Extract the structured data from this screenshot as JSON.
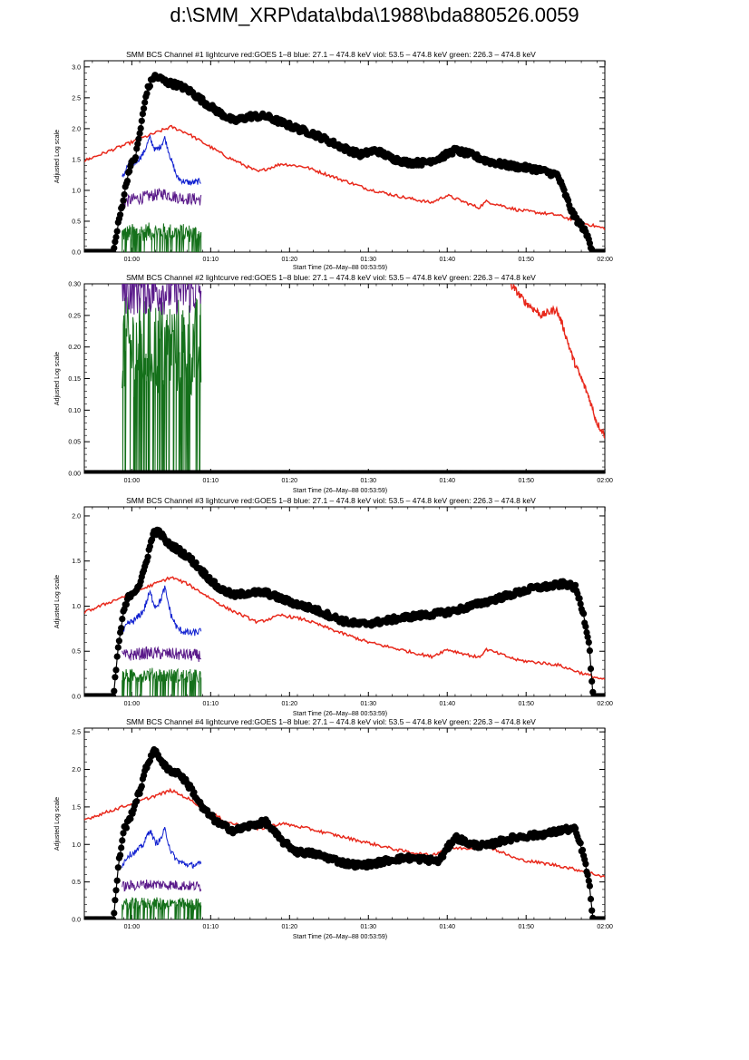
{
  "page": {
    "title": "d:\\SMM_XRP\\data\\bda\\1988\\bda880526.0059"
  },
  "colors": {
    "goes": "#e8291c",
    "blue": "#1020d0",
    "violet": "#5a1a8a",
    "green": "#14701a",
    "bcs": "#000000"
  },
  "chart_data": [
    {
      "type": "line",
      "title": "SMM BCS Channel #1 lightcurve  red:GOES 1–8  blue: 27.1 – 474.8 keV  viol: 53.5 – 474.8 keV  green: 226.3 – 474.8 keV",
      "xlabel": "Start Time (26–May–88 00:53:59)",
      "ylabel": "Adjusted Log scale",
      "x_unit": "minutes after 00:53:59",
      "xlim": [
        0,
        66
      ],
      "ylim": [
        0,
        3.1
      ],
      "x_ticks": [
        6.02,
        16.02,
        26.02,
        36.02,
        46.02,
        56.02,
        66.02
      ],
      "x_tick_labels": [
        "01:00",
        "01:10",
        "01:20",
        "01:30",
        "01:40",
        "01:50",
        "02:00"
      ],
      "y_ticks": [
        0,
        0.5,
        1,
        1.5,
        2,
        2.5,
        3
      ],
      "y_tick_labels": [
        "0.0",
        "0.5",
        "1.0",
        "1.5",
        "2.0",
        "2.5",
        "3.0"
      ],
      "hxrbs_end": 14.8,
      "series": [
        {
          "key": "goes",
          "style": "line",
          "x": [
            0,
            11,
            13,
            18,
            22,
            25,
            28,
            32,
            36,
            40,
            44,
            46,
            50,
            51,
            55,
            60,
            63,
            66
          ],
          "y": [
            1.48,
            2.03,
            1.93,
            1.55,
            1.3,
            1.43,
            1.38,
            1.2,
            1.02,
            0.9,
            0.8,
            0.92,
            0.72,
            0.82,
            0.68,
            0.6,
            0.48,
            0.38
          ]
        },
        {
          "key": "bcs",
          "style": "markers",
          "x": [
            0,
            3.7,
            4.3,
            5,
            5.7,
            6.5,
            7.2,
            7.9,
            8.8,
            9.5,
            10.5,
            12,
            13.5,
            15,
            17,
            19,
            21,
            23,
            25,
            27,
            29,
            31,
            33,
            35,
            37,
            39,
            41,
            43,
            45,
            47,
            49,
            51,
            53,
            55,
            57,
            58,
            60,
            62,
            63.2,
            64,
            64.5,
            65.3,
            66
          ],
          "y": [
            0,
            0,
            0.45,
            0.9,
            1.35,
            1.55,
            2.05,
            2.6,
            2.85,
            2.82,
            2.75,
            2.7,
            2.6,
            2.45,
            2.27,
            2.12,
            2.2,
            2.2,
            2.1,
            2.0,
            1.92,
            1.8,
            1.68,
            1.58,
            1.65,
            1.52,
            1.45,
            1.45,
            1.52,
            1.65,
            1.58,
            1.48,
            1.42,
            1.38,
            1.35,
            1.32,
            1.25,
            0.6,
            0.4,
            0.2,
            0,
            0,
            0
          ]
        },
        {
          "key": "blue",
          "style": "noisy",
          "x": [
            4.8,
            5.5,
            6.5,
            7.5,
            8.3,
            9,
            9.6,
            10.2,
            11,
            11.8,
            12.5,
            13.5,
            14.8
          ],
          "y": [
            1.2,
            1.4,
            1.45,
            1.6,
            1.85,
            1.65,
            1.7,
            1.85,
            1.5,
            1.2,
            1.15,
            1.12,
            1.15
          ],
          "noise": 0.05
        },
        {
          "key": "violet",
          "style": "noisy",
          "x": [
            4.8,
            6,
            8,
            10,
            12,
            14.8
          ],
          "y": [
            0.8,
            0.85,
            0.9,
            0.95,
            0.88,
            0.85
          ],
          "noise": 0.1
        },
        {
          "key": "green",
          "style": "noisy",
          "x": [
            4.8,
            8,
            11,
            14.8
          ],
          "y": [
            0.3,
            0.33,
            0.32,
            0.3
          ],
          "noise": 0.15
        }
      ]
    },
    {
      "type": "line",
      "title": "SMM BCS Channel #2 lightcurve  red:GOES 1–8  blue: 27.1 – 474.8 keV  viol: 53.5 – 474.8 keV  green: 226.3 – 474.8 keV",
      "xlabel": "Start Time (26–May–88 00:53:59)",
      "ylabel": "Adjusted Log scale",
      "x_unit": "minutes after 00:53:59",
      "xlim": [
        0,
        66
      ],
      "ylim": [
        0,
        0.3
      ],
      "x_ticks": [
        6.02,
        16.02,
        26.02,
        36.02,
        46.02,
        56.02,
        66.02
      ],
      "x_tick_labels": [
        "01:00",
        "01:10",
        "01:20",
        "01:30",
        "01:40",
        "01:50",
        "02:00"
      ],
      "y_ticks": [
        0,
        0.05,
        0.1,
        0.15,
        0.2,
        0.25,
        0.3
      ],
      "y_tick_labels": [
        "0.00",
        "0.05",
        "0.10",
        "0.15",
        "0.20",
        "0.25",
        "0.30"
      ],
      "hxrbs_end": 14.8,
      "series": [
        {
          "key": "goes",
          "style": "noisy",
          "x": [
            54,
            56,
            58,
            59.8,
            60.5,
            62,
            64,
            65,
            66
          ],
          "y": [
            0.3,
            0.27,
            0.25,
            0.26,
            0.24,
            0.18,
            0.12,
            0.08,
            0.06
          ],
          "noise": 0.006
        },
        {
          "key": "bcs",
          "style": "markers",
          "x": [
            0,
            10,
            20,
            30,
            40,
            50,
            60,
            66
          ],
          "y": [
            0,
            0,
            0,
            0,
            0,
            0,
            0,
            0
          ]
        },
        {
          "key": "violet",
          "style": "noisy",
          "x": [
            4.8,
            14.8
          ],
          "y": [
            0.29,
            0.29
          ],
          "noise": 0.04
        },
        {
          "key": "green",
          "style": "noisy",
          "x": [
            4.8,
            14.8
          ],
          "y": [
            0.2,
            0.2
          ],
          "noise": 0.08
        }
      ]
    },
    {
      "type": "line",
      "title": "SMM BCS Channel #3 lightcurve  red:GOES 1–8  blue: 27.1 – 474.8 keV  viol: 53.5 – 474.8 keV  green: 226.3 – 474.8 keV",
      "xlabel": "Start Time (26–May–88 00:53:59)",
      "ylabel": "Adjusted Log scale",
      "x_unit": "minutes after 00:53:59",
      "xlim": [
        0,
        66
      ],
      "ylim": [
        0,
        2.1
      ],
      "x_ticks": [
        6.02,
        16.02,
        26.02,
        36.02,
        46.02,
        56.02,
        66.02
      ],
      "x_tick_labels": [
        "01:00",
        "01:10",
        "01:20",
        "01:30",
        "01:40",
        "01:50",
        "02:00"
      ],
      "y_ticks": [
        0,
        0.5,
        1,
        1.5,
        2
      ],
      "y_tick_labels": [
        "0.0",
        "0.5",
        "1.0",
        "1.5",
        "2.0"
      ],
      "hxrbs_end": 14.8,
      "series": [
        {
          "key": "goes",
          "style": "line",
          "x": [
            0,
            11,
            13,
            18,
            22,
            25,
            28,
            32,
            36,
            40,
            44,
            46,
            50,
            51,
            55,
            60,
            63,
            66
          ],
          "y": [
            0.93,
            1.32,
            1.25,
            0.98,
            0.82,
            0.9,
            0.85,
            0.72,
            0.6,
            0.52,
            0.44,
            0.52,
            0.43,
            0.52,
            0.4,
            0.35,
            0.26,
            0.18
          ]
        },
        {
          "key": "bcs",
          "style": "markers",
          "x": [
            0,
            3.7,
            4.3,
            5,
            5.7,
            6.4,
            7.2,
            8,
            8.8,
            9.5,
            10.5,
            12,
            13.5,
            15,
            17,
            19,
            21,
            23,
            25,
            27,
            29,
            31,
            33,
            35,
            37,
            39,
            41,
            43,
            45,
            47,
            49,
            51,
            53,
            55,
            57,
            59,
            61,
            62.3,
            63.2,
            64,
            64.5,
            65.3,
            66
          ],
          "y": [
            0,
            0,
            0.55,
            0.95,
            1.12,
            1.17,
            1.27,
            1.55,
            1.82,
            1.82,
            1.7,
            1.62,
            1.52,
            1.38,
            1.2,
            1.12,
            1.15,
            1.15,
            1.08,
            1.02,
            0.97,
            0.9,
            0.83,
            0.8,
            0.82,
            0.85,
            0.88,
            0.9,
            0.92,
            0.95,
            1.0,
            1.05,
            1.1,
            1.15,
            1.2,
            1.22,
            1.25,
            1.2,
            0.95,
            0.6,
            0,
            0,
            0
          ]
        },
        {
          "key": "blue",
          "style": "noisy",
          "x": [
            4.8,
            5.5,
            6.5,
            7.5,
            8.3,
            9,
            9.6,
            10.2,
            11,
            11.8,
            12.5,
            13.5,
            14.8
          ],
          "y": [
            0.7,
            0.8,
            0.85,
            0.95,
            1.15,
            1.0,
            1.05,
            1.2,
            0.9,
            0.75,
            0.72,
            0.7,
            0.72
          ],
          "noise": 0.04
        },
        {
          "key": "violet",
          "style": "noisy",
          "x": [
            4.8,
            8,
            11,
            14.8
          ],
          "y": [
            0.45,
            0.48,
            0.47,
            0.45
          ],
          "noise": 0.07
        },
        {
          "key": "green",
          "style": "noisy",
          "x": [
            4.8,
            8,
            11,
            14.8
          ],
          "y": [
            0.22,
            0.24,
            0.23,
            0.22
          ],
          "noise": 0.08
        }
      ]
    },
    {
      "type": "line",
      "title": "SMM BCS Channel #4 lightcurve  red:GOES 1–8  blue: 27.1 – 474.8 keV  viol: 53.5 – 474.8 keV  green: 226.3 – 474.8 keV",
      "xlabel": "Start Time (26–May–88 00:53:59)",
      "ylabel": "Adjusted Log scale",
      "x_unit": "minutes after 00:53:59",
      "xlim": [
        0,
        66
      ],
      "ylim": [
        0,
        2.55
      ],
      "x_ticks": [
        6.02,
        16.02,
        26.02,
        36.02,
        46.02,
        56.02,
        66.02
      ],
      "x_tick_labels": [
        "01:00",
        "01:10",
        "01:20",
        "01:30",
        "01:40",
        "01:50",
        "02:00"
      ],
      "y_ticks": [
        0,
        0.5,
        1,
        1.5,
        2,
        2.5
      ],
      "y_tick_labels": [
        "0.0",
        "0.5",
        "1.0",
        "1.5",
        "2.0",
        "2.5"
      ],
      "hxrbs_end": 14.8,
      "series": [
        {
          "key": "goes",
          "style": "line",
          "x": [
            0,
            11,
            13,
            18,
            22,
            25,
            28,
            32,
            36,
            40,
            44,
            46,
            50,
            51,
            55,
            60,
            63,
            66
          ],
          "y": [
            1.33,
            1.72,
            1.62,
            1.3,
            1.2,
            1.28,
            1.22,
            1.12,
            1.02,
            0.92,
            0.85,
            0.95,
            0.95,
            0.98,
            0.8,
            0.72,
            0.65,
            0.57
          ]
        },
        {
          "key": "bcs",
          "style": "markers",
          "x": [
            0,
            3.7,
            4.3,
            5,
            5.6,
            6.3,
            7,
            7.8,
            8.7,
            9.5,
            10.5,
            12,
            13.5,
            15,
            17,
            19,
            21,
            23,
            25,
            27,
            29,
            31,
            33,
            35,
            37,
            39,
            41,
            43,
            45,
            47,
            49,
            51,
            53,
            55,
            57,
            59,
            61,
            62.2,
            63.2,
            64,
            64.5,
            65.3,
            66
          ],
          "y": [
            0,
            0,
            0.7,
            1.2,
            1.3,
            1.5,
            1.7,
            2.0,
            2.25,
            2.17,
            2.0,
            1.95,
            1.75,
            1.48,
            1.28,
            1.18,
            1.25,
            1.3,
            1.05,
            0.9,
            0.88,
            0.82,
            0.75,
            0.72,
            0.75,
            0.8,
            0.82,
            0.8,
            0.78,
            1.1,
            1.0,
            0.98,
            1.05,
            1.1,
            1.12,
            1.15,
            1.2,
            1.2,
            0.9,
            0.5,
            0,
            0,
            0
          ]
        },
        {
          "key": "blue",
          "style": "noisy",
          "x": [
            4.8,
            5.5,
            6.5,
            7.5,
            8.3,
            9,
            9.6,
            10.2,
            11,
            11.8,
            12.5,
            13.5,
            14.8
          ],
          "y": [
            0.72,
            0.85,
            0.9,
            1.0,
            1.2,
            1.02,
            1.05,
            1.2,
            0.9,
            0.78,
            0.75,
            0.72,
            0.74
          ],
          "noise": 0.04
        },
        {
          "key": "violet",
          "style": "noisy",
          "x": [
            4.8,
            8,
            11,
            14.8
          ],
          "y": [
            0.44,
            0.47,
            0.46,
            0.44
          ],
          "noise": 0.07
        },
        {
          "key": "green",
          "style": "noisy",
          "x": [
            4.8,
            8,
            11,
            14.8
          ],
          "y": [
            0.2,
            0.22,
            0.21,
            0.2
          ],
          "noise": 0.08
        }
      ]
    }
  ]
}
